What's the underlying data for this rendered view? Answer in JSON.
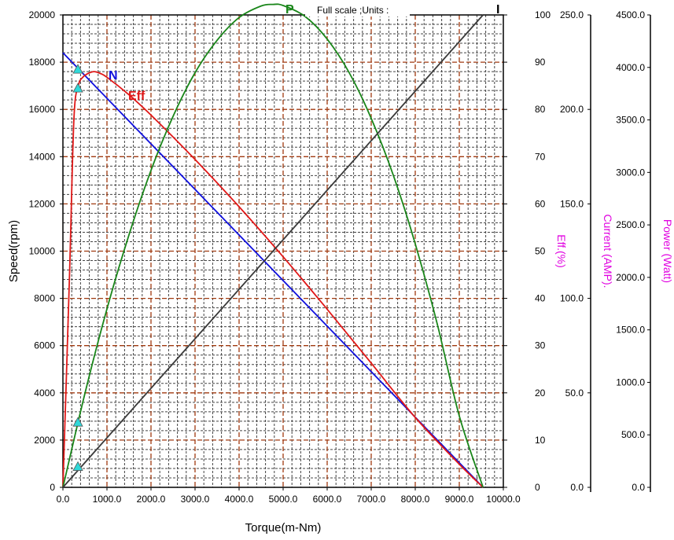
{
  "chart_data": {
    "type": "line",
    "title": "Full scale ;Units :",
    "xlabel": "Torque(m-Nm)",
    "x_axis": {
      "min": 0,
      "max": 10000,
      "ticks": [
        "0.0",
        "1000.0",
        "2000.0",
        "3000.0",
        "4000.0",
        "5000.0",
        "6000.0",
        "7000.0",
        "8000.0",
        "9000.0",
        "10000.0"
      ]
    },
    "y_axes": [
      {
        "name": "speed",
        "label": "Speed(rpm)",
        "min": 0,
        "max": 20000,
        "ticks": [
          "0",
          "2000",
          "4000",
          "6000",
          "8000",
          "10000",
          "12000",
          "14000",
          "16000",
          "18000",
          "20000"
        ]
      },
      {
        "name": "eff",
        "label": "Eff.(%)",
        "min": 0,
        "max": 100,
        "ticks": [
          "0",
          "10",
          "20",
          "30",
          "40",
          "50",
          "60",
          "70",
          "80",
          "90",
          "100"
        ]
      },
      {
        "name": "current",
        "label": "Current (AMP).",
        "min": 0,
        "max": 250,
        "ticks": [
          "0.0",
          "50.0",
          "100.0",
          "150.0",
          "200.0",
          "250.0"
        ]
      },
      {
        "name": "power",
        "label": "Power (Watt)",
        "min": 0,
        "max": 4500,
        "ticks": [
          "0.0",
          "500.0",
          "1000.0",
          "1500.0",
          "2000.0",
          "2500.0",
          "3000.0",
          "3500.0",
          "4000.0",
          "4500.0"
        ]
      }
    ],
    "grid": true,
    "series": [
      {
        "name": "N",
        "axis": "speed",
        "color": "#1010dd",
        "x": [
          0,
          9540
        ],
        "y": [
          18400,
          0
        ]
      },
      {
        "name": "Eff",
        "axis": "eff",
        "color": "#e01818",
        "x": [
          0,
          150,
          250,
          350,
          450,
          550,
          700,
          850,
          1000,
          1500,
          2000,
          3000,
          4000,
          5000,
          6000,
          7000,
          8000,
          9000,
          9540
        ],
        "y": [
          0,
          45,
          78,
          85,
          86.8,
          87.5,
          88,
          87.6,
          86.8,
          83.1,
          78.8,
          69.4,
          59.4,
          48.8,
          37.7,
          26.3,
          14.8,
          4.9,
          0
        ]
      },
      {
        "name": "P",
        "axis": "power",
        "color": "#1a861a",
        "x": [
          0,
          500,
          1000,
          1500,
          2000,
          2500,
          3000,
          3500,
          4000,
          4500,
          4770,
          5000,
          5500,
          6000,
          6500,
          7000,
          7500,
          8000,
          8500,
          9000,
          9540
        ],
        "y": [
          0,
          895,
          1700,
          2405,
          3020,
          3533,
          3950,
          4258,
          4475,
          4585,
          4600,
          4590,
          4485,
          4270,
          3950,
          3515,
          2975,
          2320,
          1555,
          680,
          0
        ]
      },
      {
        "name": "I",
        "axis": "current",
        "color": "#3a3a3a",
        "x": [
          0,
          9540
        ],
        "y": [
          0,
          250
        ]
      }
    ],
    "markers": {
      "color": "#30d8d8",
      "points": [
        {
          "axis": "speed",
          "x": 340,
          "y": 17700
        },
        {
          "axis": "eff",
          "x": 340,
          "y": 84.5
        },
        {
          "axis": "power",
          "x": 340,
          "y": 620
        },
        {
          "axis": "current",
          "x": 340,
          "y": 11
        }
      ]
    },
    "curve_labels": [
      {
        "text": "N",
        "color": "#1010dd"
      },
      {
        "text": "Eff",
        "color": "#e01818"
      },
      {
        "text": "P",
        "color": "#1a861a"
      },
      {
        "text": "I",
        "color": "#000000"
      }
    ]
  }
}
